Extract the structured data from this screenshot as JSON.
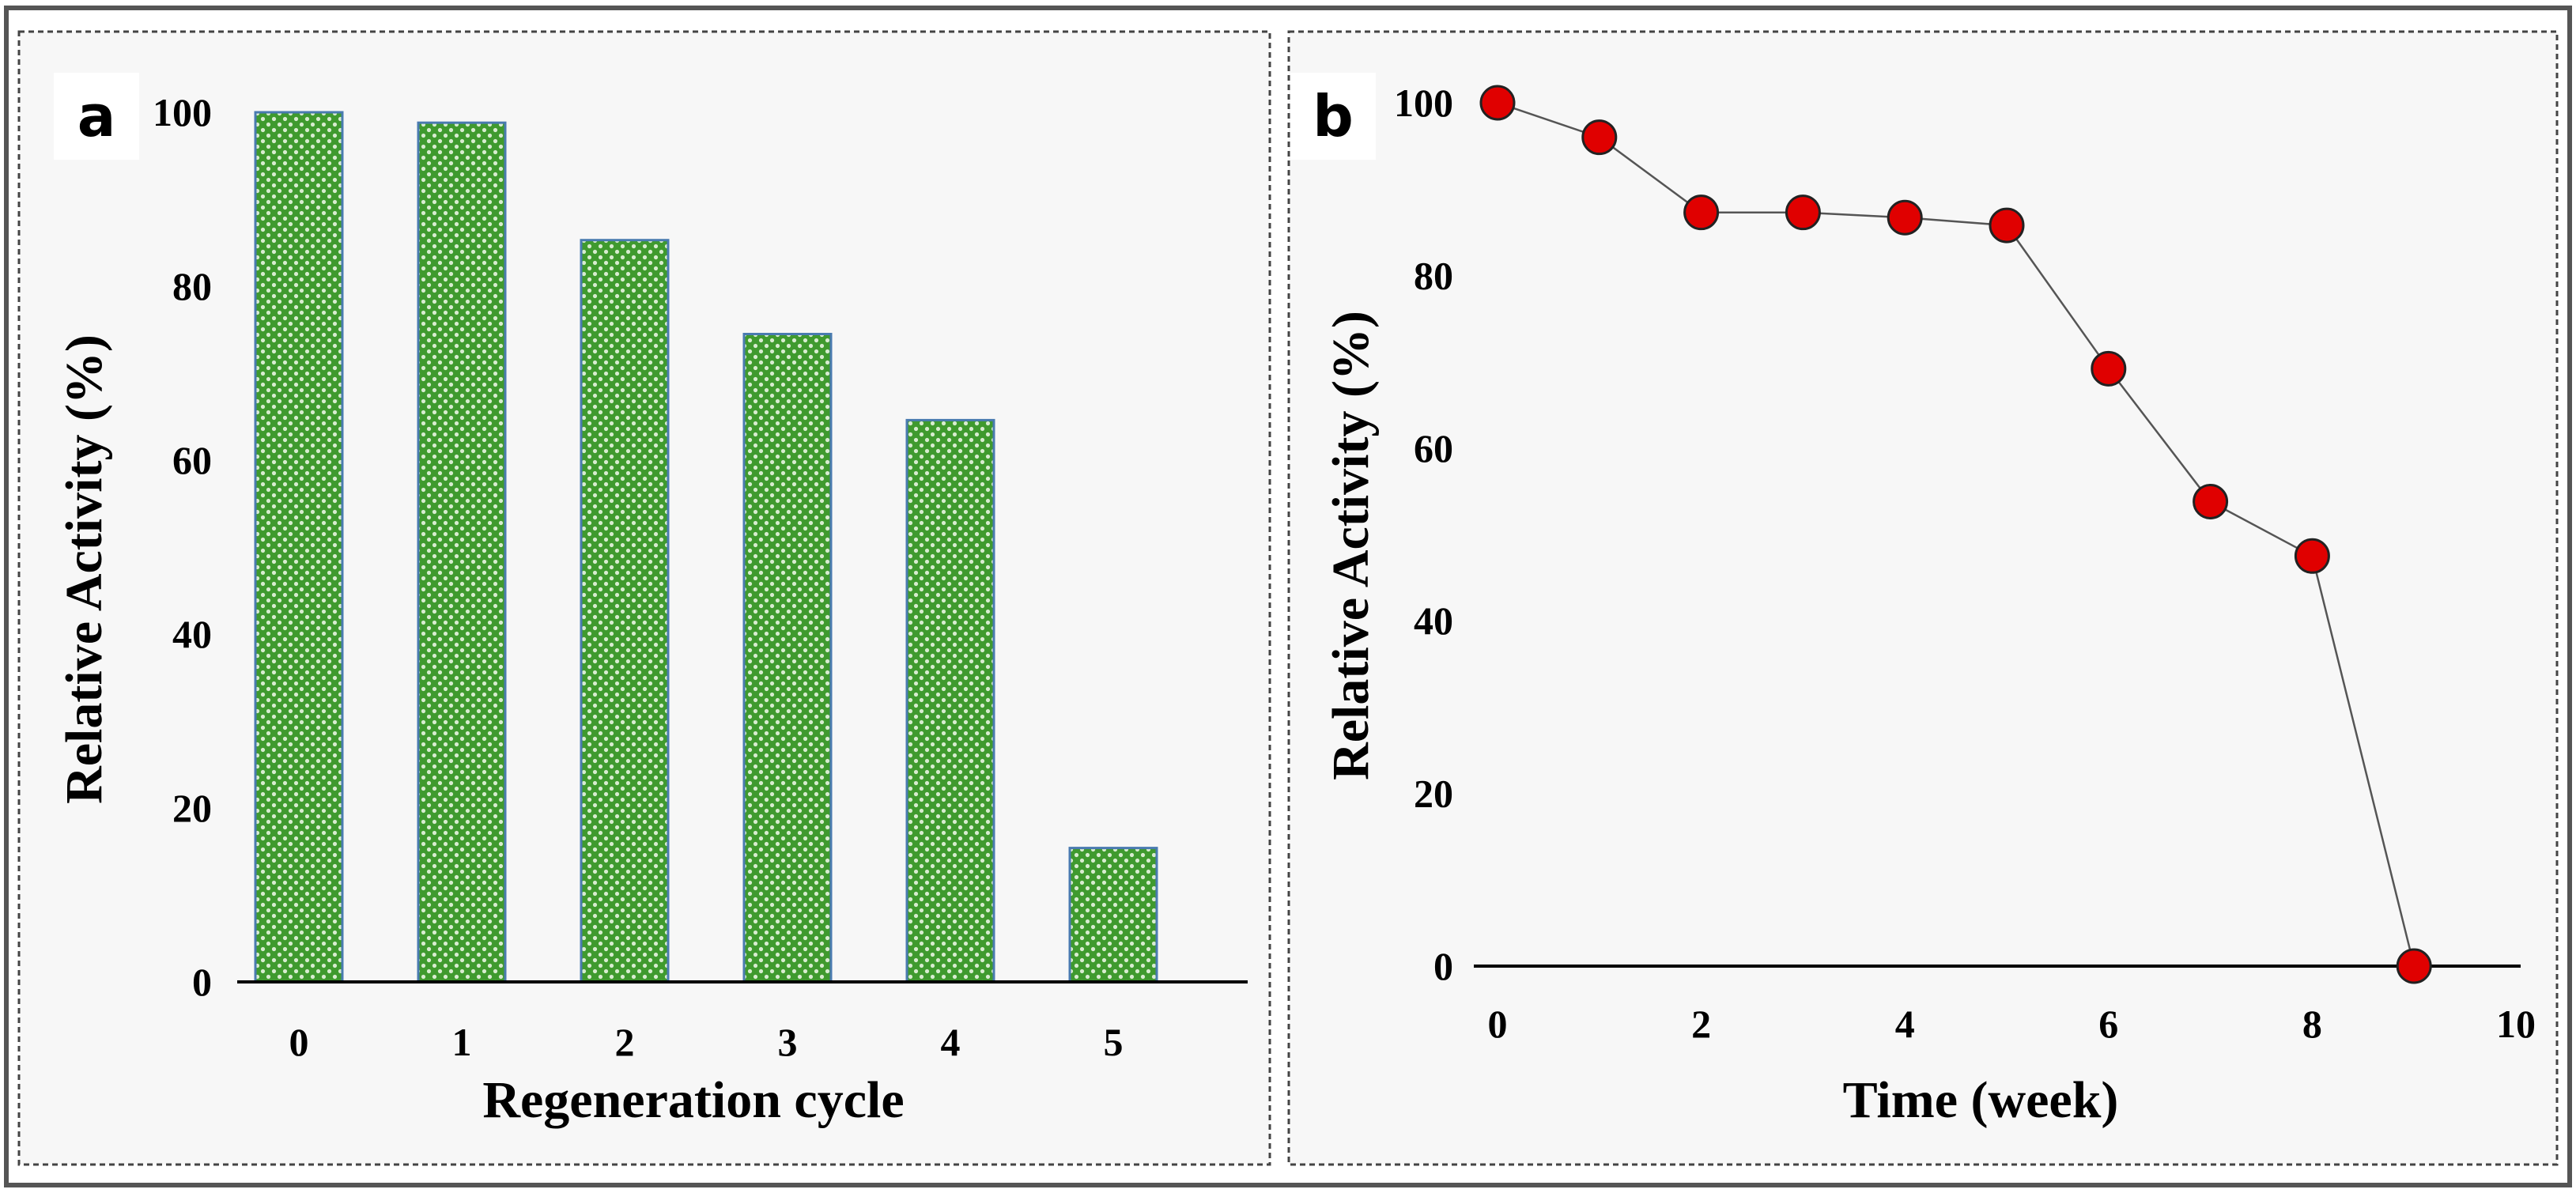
{
  "chart_data": [
    {
      "panel": "a",
      "type": "bar",
      "categories": [
        "0",
        "1",
        "2",
        "3",
        "4",
        "5"
      ],
      "values": [
        100,
        98.8,
        85.3,
        74.5,
        64.6,
        15.4
      ],
      "xlabel": "Regeneration cycle",
      "ylabel": "Relative Activity (%)",
      "ylim": [
        0,
        100
      ],
      "yticks": [
        "0",
        "20",
        "40",
        "60",
        "80",
        "100"
      ],
      "grid": false,
      "bar_color": "#3f9a2e",
      "bar_edge_color": "#4a7bb0"
    },
    {
      "panel": "b",
      "type": "line",
      "x": [
        0,
        1,
        2,
        3,
        4,
        5,
        6,
        7,
        8,
        9
      ],
      "values": [
        100,
        96,
        87.3,
        87.3,
        86.7,
        85.8,
        69.2,
        53.8,
        47.5,
        0
      ],
      "xlabel": "Time (week)",
      "ylabel": "Relative Activity (%)",
      "xlim": [
        0,
        10
      ],
      "ylim": [
        0,
        100
      ],
      "xticks": [
        "0",
        "2",
        "4",
        "6",
        "8",
        "10"
      ],
      "yticks": [
        "0",
        "20",
        "40",
        "60",
        "80",
        "100"
      ],
      "grid": false,
      "marker_color": "#e00000",
      "line_color": "#555555"
    }
  ]
}
